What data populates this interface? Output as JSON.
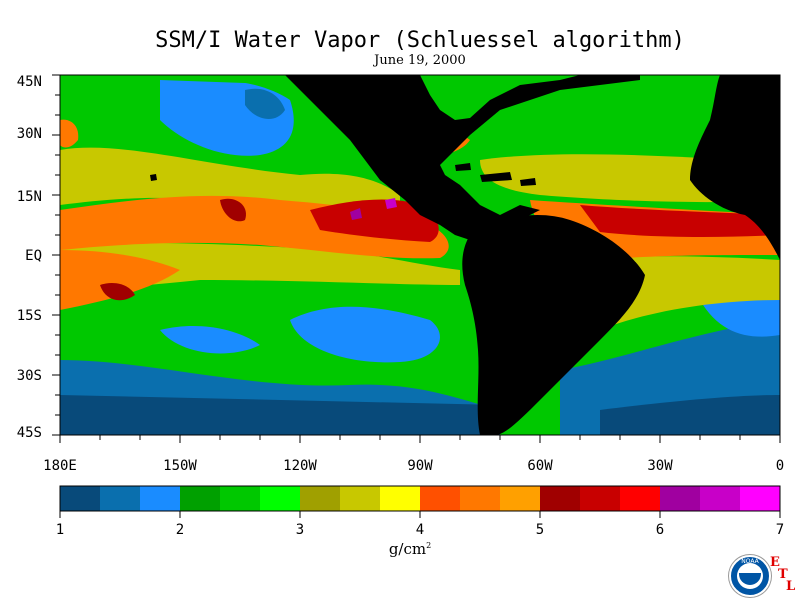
{
  "title": "SSM/I Water Vapor (Schluessel algorithm)",
  "date": "June 19, 2000",
  "y_axis_labels": [
    "45N",
    "30N",
    "15N",
    "EQ",
    "15S",
    "30S",
    "45S"
  ],
  "x_axis_labels": [
    "180E",
    "150W",
    "120W",
    "90W",
    "60W",
    "30W",
    "0"
  ],
  "colorbar": {
    "tick_labels": [
      "1",
      "2",
      "3",
      "4",
      "5",
      "6",
      "7"
    ],
    "units": "g/cm",
    "units_exponent": "2",
    "colors": [
      "#084a7a",
      "#0a6fae",
      "#1a8cff",
      "#00a000",
      "#00c800",
      "#00ff00",
      "#a0a000",
      "#c8c800",
      "#ffff00",
      "#ff5000",
      "#ff7800",
      "#ffa000",
      "#a00000",
      "#c80000",
      "#ff0000",
      "#a000a0",
      "#c800c8",
      "#ff00ff"
    ]
  },
  "logo": {
    "text": "NOAA",
    "etl": [
      "E",
      "T",
      "L"
    ]
  }
}
